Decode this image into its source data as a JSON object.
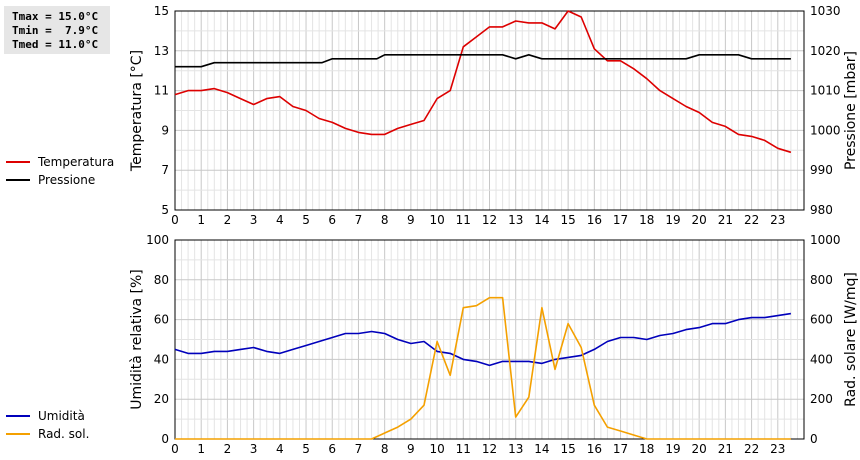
{
  "stats": {
    "tmax": "Tmax = 15.0°C",
    "tmin": "Tmin =  7.9°C",
    "tmed": "Tmed = 11.0°C"
  },
  "chart_data": [
    {
      "type": "line",
      "ylabel_left": "Temperatura [°C]",
      "ylabel_right": "Pressione [mbar]",
      "ylim_left": [
        5,
        15
      ],
      "ylim_right": [
        980,
        1030
      ],
      "yticks_left": [
        5,
        7,
        9,
        11,
        13,
        15
      ],
      "yticks_right": [
        980,
        990,
        1000,
        1010,
        1020,
        1030
      ],
      "xlim": [
        0,
        24
      ],
      "xticks": [
        0,
        1,
        2,
        3,
        4,
        5,
        6,
        7,
        8,
        9,
        10,
        11,
        12,
        13,
        14,
        15,
        16,
        17,
        18,
        19,
        20,
        21,
        22,
        23
      ],
      "grid": true,
      "legend_position": "left",
      "series": [
        {
          "name": "Temperatura",
          "axis": "left",
          "color": "#dd0000",
          "x": [
            0,
            0.5,
            1,
            1.5,
            2,
            2.5,
            3,
            3.5,
            4,
            4.5,
            5,
            5.5,
            6,
            6.5,
            7,
            7.5,
            8,
            8.5,
            9,
            9.5,
            10,
            10.5,
            11,
            11.5,
            12,
            12.5,
            13,
            13.5,
            14,
            14.5,
            15,
            15.5,
            16,
            16.5,
            17,
            17.5,
            18,
            18.5,
            19,
            19.5,
            20,
            20.5,
            21,
            21.5,
            22,
            22.5,
            23,
            23.5
          ],
          "values": [
            10.8,
            11.0,
            11.0,
            11.1,
            10.9,
            10.6,
            10.3,
            10.6,
            10.7,
            10.2,
            10.0,
            9.6,
            9.4,
            9.1,
            8.9,
            8.8,
            8.8,
            9.1,
            9.3,
            9.5,
            10.6,
            11.0,
            13.2,
            13.7,
            14.2,
            14.2,
            14.5,
            14.4,
            14.4,
            14.1,
            15.0,
            14.7,
            13.1,
            12.5,
            12.5,
            12.1,
            11.6,
            11.0,
            10.6,
            10.2,
            9.9,
            9.4,
            9.2,
            8.8,
            8.7,
            8.5,
            8.1,
            7.9
          ]
        },
        {
          "name": "Pressione",
          "axis": "right",
          "color": "#000000",
          "x": [
            0,
            1,
            1.5,
            2,
            3,
            4,
            5,
            5.6,
            6,
            7,
            7.7,
            8,
            9,
            10,
            11,
            12,
            12.5,
            13,
            13.5,
            14,
            15,
            16,
            17,
            18,
            19,
            19.5,
            20,
            21,
            21.5,
            22,
            23,
            23.5
          ],
          "values": [
            1016,
            1016,
            1017,
            1017,
            1017,
            1017,
            1017,
            1017,
            1018,
            1018,
            1018,
            1019,
            1019,
            1019,
            1019,
            1019,
            1019,
            1018,
            1019,
            1018,
            1018,
            1018,
            1018,
            1018,
            1018,
            1018,
            1019,
            1019,
            1019,
            1018,
            1018,
            1018
          ]
        }
      ]
    },
    {
      "type": "line",
      "ylabel_left": "Umidità relativa [%]",
      "ylabel_right": "Rad. solare [W/mq]",
      "ylim_left": [
        0,
        100
      ],
      "ylim_right": [
        0,
        1000
      ],
      "yticks_left": [
        0,
        20,
        40,
        60,
        80,
        100
      ],
      "yticks_right": [
        0,
        200,
        400,
        600,
        800,
        1000
      ],
      "xlim": [
        0,
        24
      ],
      "xticks": [
        0,
        1,
        2,
        3,
        4,
        5,
        6,
        7,
        8,
        9,
        10,
        11,
        12,
        13,
        14,
        15,
        16,
        17,
        18,
        19,
        20,
        21,
        22,
        23
      ],
      "grid": true,
      "legend_position": "left",
      "series": [
        {
          "name": "Umidità",
          "axis": "left",
          "color": "#0000bb",
          "x": [
            0,
            0.5,
            1,
            1.5,
            2,
            2.5,
            3,
            3.5,
            4,
            4.5,
            5,
            5.5,
            6,
            6.5,
            7,
            7.5,
            8,
            8.5,
            9,
            9.5,
            10,
            10.5,
            11,
            11.5,
            12,
            12.5,
            13,
            13.5,
            14,
            14.5,
            15,
            15.5,
            16,
            16.5,
            17,
            17.5,
            18,
            18.5,
            19,
            19.5,
            20,
            20.5,
            21,
            21.5,
            22,
            22.5,
            23,
            23.5
          ],
          "values": [
            45,
            43,
            43,
            44,
            44,
            45,
            46,
            44,
            43,
            45,
            47,
            49,
            51,
            53,
            53,
            54,
            53,
            50,
            48,
            49,
            44,
            43,
            40,
            39,
            37,
            39,
            39,
            39,
            38,
            40,
            41,
            42,
            45,
            49,
            51,
            51,
            50,
            52,
            53,
            55,
            56,
            58,
            58,
            60,
            61,
            61,
            62,
            63
          ]
        },
        {
          "name": "Rad. sol.",
          "axis": "right",
          "color": "#f4a000",
          "x": [
            0,
            1,
            2,
            3,
            4,
            5,
            6,
            7,
            7.5,
            8,
            8.5,
            9,
            9.5,
            10,
            10.5,
            11,
            11.5,
            12,
            12.5,
            13,
            13.5,
            14,
            14.5,
            15,
            15.5,
            16,
            16.5,
            17,
            17.5,
            18,
            19,
            20,
            21,
            22,
            23,
            23.5
          ],
          "values": [
            0,
            0,
            0,
            0,
            0,
            0,
            0,
            0,
            0,
            30,
            60,
            100,
            170,
            490,
            320,
            660,
            670,
            710,
            710,
            110,
            210,
            660,
            350,
            580,
            460,
            170,
            60,
            40,
            20,
            0,
            0,
            0,
            0,
            0,
            0,
            0
          ]
        }
      ]
    }
  ]
}
